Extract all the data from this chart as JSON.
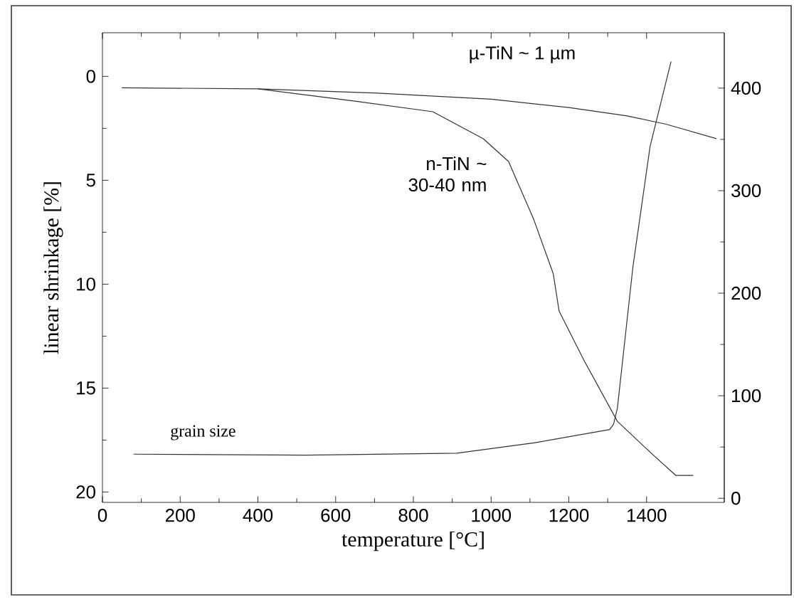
{
  "chart_data": {
    "type": "line",
    "xlabel": "temperature [°C]",
    "ylabel": "linear shrinkage [%]",
    "xlim": [
      0,
      1600
    ],
    "xticks": [
      0,
      200,
      400,
      600,
      800,
      1000,
      1200,
      1400
    ],
    "ylim": [
      20.5,
      -2.1
    ],
    "yticks": [
      0,
      5,
      10,
      15,
      20
    ],
    "y2lim": [
      -4,
      454
    ],
    "y2ticks": [
      0,
      100,
      200,
      300,
      400
    ],
    "marker": "none",
    "series": [
      {
        "name": "µ-TiN ~ 1 µm",
        "color": "#333333",
        "x": [
          50,
          400,
          700,
          1000,
          1200,
          1350,
          1450,
          1580
        ],
        "values": [
          0.55,
          0.6,
          0.8,
          1.1,
          1.5,
          1.9,
          2.3,
          3.0
        ]
      },
      {
        "name": "n-TiN ~ 30-40 nm",
        "color": "#333333",
        "x": [
          400,
          653,
          850,
          980,
          1045,
          1110,
          1160,
          1175,
          1240,
          1325,
          1410,
          1475,
          1520
        ],
        "values": [
          0.6,
          1.2,
          1.7,
          3.0,
          4.1,
          6.9,
          9.5,
          11.3,
          13.7,
          16.6,
          18.1,
          19.2,
          19.2
        ]
      },
      {
        "name": "grain size",
        "color": "#333333",
        "axis": "y2",
        "x": [
          80,
          522,
          912,
          1110,
          1305,
          1315,
          1325,
          1365,
          1409,
          1463
        ],
        "values": [
          43,
          42,
          44,
          54,
          67,
          72,
          88,
          226,
          343,
          426
        ]
      }
    ]
  }
}
